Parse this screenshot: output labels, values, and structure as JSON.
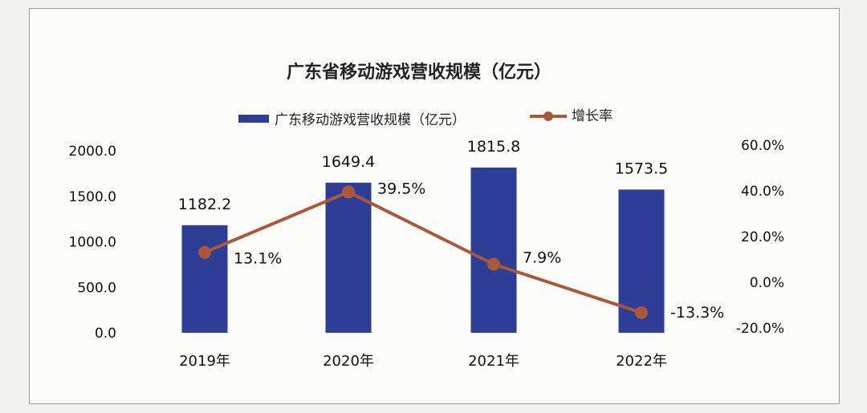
{
  "chart_data": {
    "type": "bar",
    "title": "广东省移动游戏营收规模（亿元）",
    "categories": [
      "2019年",
      "2020年",
      "2021年",
      "2022年"
    ],
    "series": [
      {
        "name": "广东移动游戏营收规模（亿元）",
        "type": "bar",
        "axis": "left",
        "values": [
          1182.2,
          1649.4,
          1815.8,
          1573.5
        ],
        "labels": [
          "1182.2",
          "1649.4",
          "1815.8",
          "1573.5"
        ],
        "color": "#2e3d96"
      },
      {
        "name": "增长率",
        "type": "line",
        "axis": "right",
        "values": [
          13.1,
          39.5,
          7.9,
          -13.3
        ],
        "labels": [
          "13.1%",
          "39.5%",
          "7.9%",
          "-13.3%"
        ],
        "color": "#a9583a"
      }
    ],
    "left_axis": {
      "ylim": [
        0,
        2000
      ],
      "ticks": [
        0,
        500,
        1000,
        1500,
        2000
      ],
      "tick_labels": [
        "0.0",
        "500.0",
        "1000.0",
        "1500.0",
        "2000.0"
      ]
    },
    "right_axis": {
      "ylim": [
        -20,
        60
      ],
      "ticks": [
        -20,
        0,
        20,
        40,
        60
      ],
      "tick_labels": [
        "-20.0%",
        "0.0%",
        "20.0%",
        "40.0%",
        "60.0%"
      ]
    },
    "grid": false,
    "legend": "top-center"
  }
}
